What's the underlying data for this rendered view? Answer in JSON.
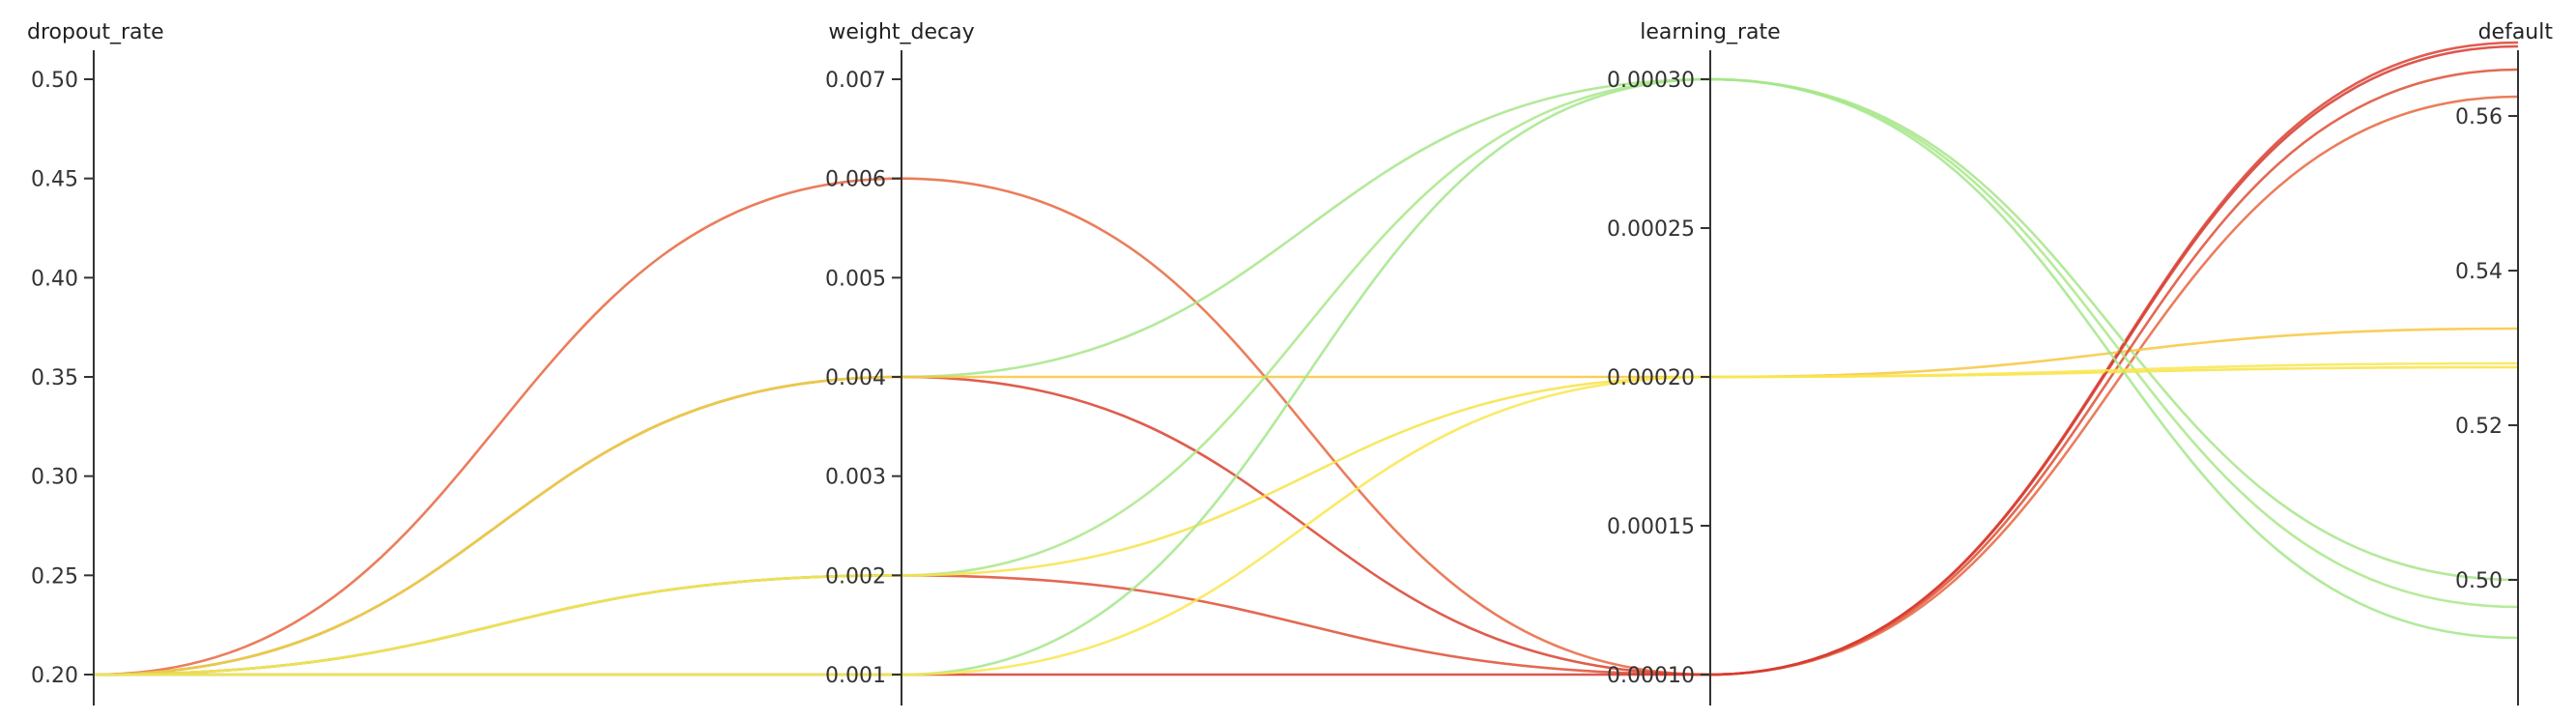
{
  "chart_data": {
    "type": "parallel-coordinates",
    "axes": [
      {
        "name": "dropout_rate",
        "range": [
          0.2,
          0.5
        ],
        "ticks": [
          "0.20",
          "0.25",
          "0.30",
          "0.35",
          "0.40",
          "0.45",
          "0.50"
        ]
      },
      {
        "name": "weight_decay",
        "range": [
          0.001,
          0.007
        ],
        "ticks": [
          "0.001",
          "0.002",
          "0.003",
          "0.004",
          "0.005",
          "0.006",
          "0.007"
        ]
      },
      {
        "name": "learning_rate",
        "range": [
          0.0001,
          0.0003
        ],
        "ticks": [
          "0.00010",
          "0.00015",
          "0.00020",
          "0.00025",
          "0.00030"
        ]
      },
      {
        "name": "default",
        "range": [
          0.4875,
          0.5725
        ],
        "ticks": [
          "0.50",
          "0.52",
          "0.54",
          "0.56"
        ]
      }
    ],
    "series": [
      {
        "values": [
          0.2,
          0.006,
          0.0001,
          0.5625
        ],
        "color": "#e8663f"
      },
      {
        "values": [
          0.2,
          0.004,
          0.0001,
          0.5695
        ],
        "color": "#d9412f"
      },
      {
        "values": [
          0.2,
          0.004,
          0.0003,
          0.5
        ],
        "color": "#a7e58a"
      },
      {
        "values": [
          0.2,
          0.004,
          0.0002,
          0.5325
        ],
        "color": "#f7c73f"
      },
      {
        "values": [
          0.2,
          0.002,
          0.0001,
          0.566
        ],
        "color": "#de4f35"
      },
      {
        "values": [
          0.2,
          0.002,
          0.0003,
          0.4965
        ],
        "color": "#a9e788"
      },
      {
        "values": [
          0.2,
          0.002,
          0.0002,
          0.5275
        ],
        "color": "#f7e34a"
      },
      {
        "values": [
          0.2,
          0.001,
          0.0001,
          0.569
        ],
        "color": "#d63a2f"
      },
      {
        "values": [
          0.2,
          0.001,
          0.0003,
          0.4925
        ],
        "color": "#a3e68b"
      },
      {
        "values": [
          0.2,
          0.001,
          0.0002,
          0.528
        ],
        "color": "#f9e64d"
      }
    ]
  }
}
